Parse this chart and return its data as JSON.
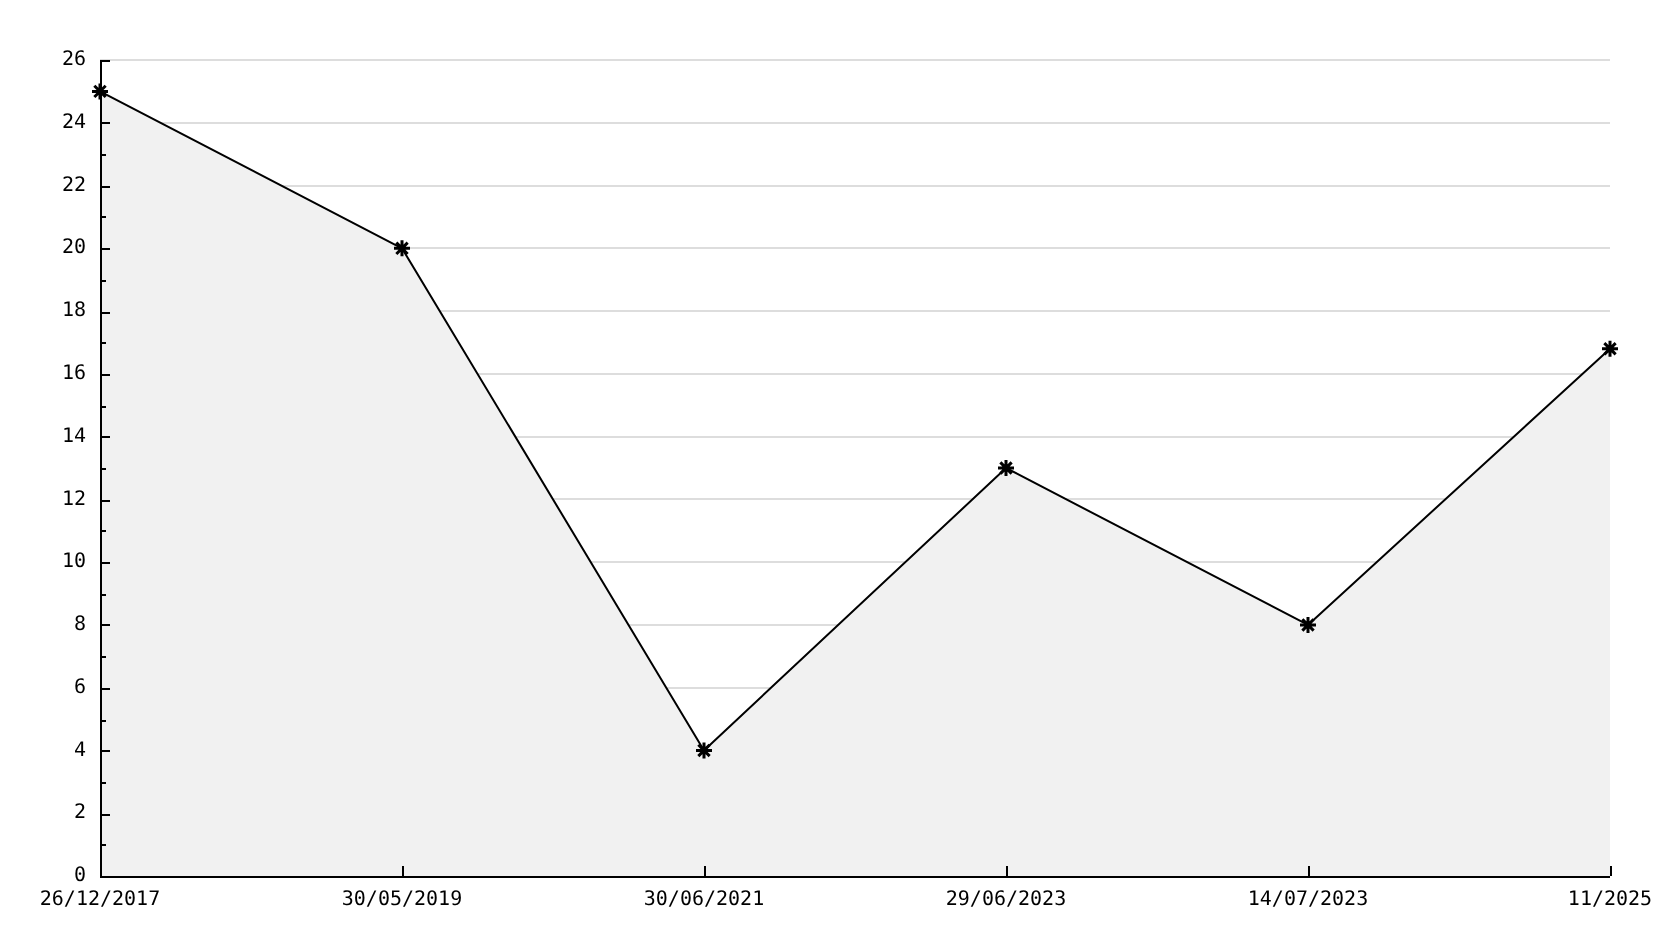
{
  "chart_data": {
    "type": "area",
    "categories": [
      "26/12/2017",
      "30/05/2019",
      "30/06/2021",
      "29/06/2023",
      "14/07/2023",
      "11/2025"
    ],
    "values": [
      25,
      20,
      4,
      13,
      8,
      16.8
    ],
    "color": "#f1f1f1",
    "ylim": [
      0,
      26
    ],
    "yticks": [
      0,
      {
        "value": 1,
        "label": null
      },
      2,
      {
        "value": 3,
        "label": null
      },
      4,
      {
        "value": 5,
        "label": null
      },
      6,
      {
        "value": 7,
        "label": null
      },
      8,
      {
        "value": 9,
        "label": null
      },
      10,
      {
        "value": 11,
        "label": null
      },
      12,
      {
        "value": 13,
        "label": null
      },
      14,
      {
        "value": 15,
        "label": null
      },
      16,
      {
        "value": 17,
        "label": null
      },
      18,
      {
        "value": 19,
        "label": null
      },
      20,
      {
        "value": 21,
        "label": null
      },
      22,
      {
        "value": 23,
        "label": null
      },
      24,
      {
        "value": 25,
        "label": null
      },
      26
    ],
    "grid": "y",
    "marker": "cross"
  }
}
